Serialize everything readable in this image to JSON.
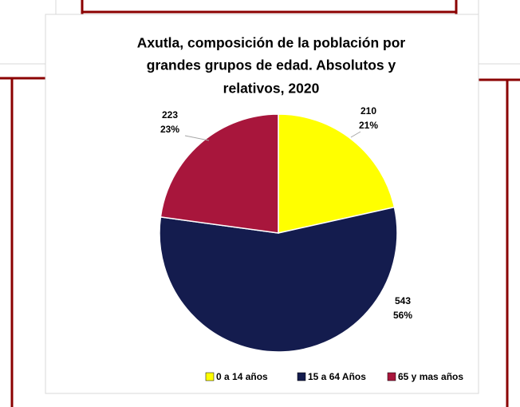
{
  "chart_data": {
    "type": "pie",
    "title": [
      "Axutla, composición de la población por",
      "grandes grupos de edad. Absolutos y",
      "relativos, 2020"
    ],
    "categories": [
      "0 a 14 años",
      "15 a 64 Años",
      "65 y mas años"
    ],
    "values": [
      210,
      543,
      223
    ],
    "percent_labels": [
      "21%",
      "56%",
      "23%"
    ],
    "colors": [
      "#ffff00",
      "#141c4e",
      "#a8163c"
    ],
    "legend": "bottom"
  }
}
